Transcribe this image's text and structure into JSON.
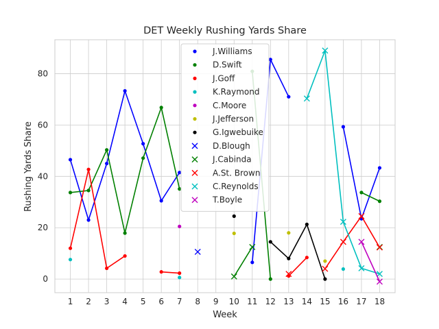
{
  "chart_data": {
    "type": "line",
    "title": "DET Weekly Rushing Yards Share",
    "xlabel": "Week",
    "ylabel": "Rushing Yards Share",
    "xlim": [
      0.15,
      18.85
    ],
    "ylim": [
      -5.3,
      93.2
    ],
    "xticks": [
      1,
      2,
      3,
      4,
      5,
      6,
      7,
      8,
      9,
      10,
      11,
      12,
      13,
      14,
      15,
      16,
      17,
      18
    ],
    "yticks": [
      0,
      20,
      40,
      60,
      80
    ],
    "grid": true,
    "legend_position": "top-center",
    "series": [
      {
        "name": "J.Williams",
        "color": "#0000ff",
        "marker": "dot",
        "segments": [
          [
            [
              1,
              46.5
            ],
            [
              2,
              23
            ],
            [
              3,
              45
            ],
            [
              4,
              73.3
            ],
            [
              5,
              52.7
            ],
            [
              6,
              30.5
            ],
            [
              7,
              41.5
            ]
          ],
          [
            [
              11,
              6.5
            ],
            [
              12,
              85.5
            ],
            [
              13,
              71
            ]
          ],
          [
            [
              16,
              59.3
            ],
            [
              17,
              23.5
            ],
            [
              18,
              43.3
            ]
          ]
        ]
      },
      {
        "name": "D.Swift",
        "color": "#008000",
        "marker": "dot",
        "segments": [
          [
            [
              1,
              33.7
            ],
            [
              2,
              34.5
            ],
            [
              3,
              50.3
            ],
            [
              4,
              17.9
            ],
            [
              5,
              47.1
            ],
            [
              6,
              66.8
            ],
            [
              7,
              35.1
            ]
          ],
          [
            [
              11,
              80.9
            ],
            [
              12,
              0
            ]
          ],
          [
            [
              17,
              33.7
            ],
            [
              18,
              30.3
            ]
          ]
        ]
      },
      {
        "name": "J.Goff",
        "color": "#ff0000",
        "marker": "dot",
        "segments": [
          [
            [
              1,
              12
            ],
            [
              2,
              42.7
            ],
            [
              3,
              4.2
            ],
            [
              4,
              9
            ]
          ],
          [
            [
              6,
              2.8
            ],
            [
              7,
              2.3
            ]
          ],
          [
            [
              13,
              1.2
            ],
            [
              14,
              8.4
            ]
          ]
        ]
      },
      {
        "name": "K.Raymond",
        "color": "#00bfbf",
        "marker": "dot",
        "segments": [
          [
            [
              1,
              7.6
            ]
          ],
          [
            [
              7,
              0.6
            ]
          ],
          [
            [
              16,
              3.9
            ]
          ]
        ]
      },
      {
        "name": "C.Moore",
        "color": "#bf00bf",
        "marker": "dot",
        "segments": [
          [
            [
              7,
              20.5
            ]
          ]
        ]
      },
      {
        "name": "J.Jefferson",
        "color": "#bfbf00",
        "marker": "dot",
        "segments": [
          [
            [
              10,
              17.8
            ]
          ],
          [
            [
              13,
              18
            ]
          ],
          [
            [
              15,
              7
            ]
          ]
        ]
      },
      {
        "name": "G.Igwebuike",
        "color": "#000000",
        "marker": "dot",
        "segments": [
          [
            [
              10,
              24.5
            ]
          ],
          [
            [
              12,
              14.5
            ],
            [
              13,
              8
            ],
            [
              14,
              21.3
            ],
            [
              15,
              0
            ]
          ]
        ]
      },
      {
        "name": "D.Blough",
        "color": "#0000ff",
        "marker": "x",
        "segments": [
          [
            [
              8,
              10.6
            ]
          ]
        ]
      },
      {
        "name": "J.Cabinda",
        "color": "#008000",
        "marker": "x",
        "segments": [
          [
            [
              10,
              1
            ],
            [
              11,
              12.5
            ]
          ],
          [
            [
              18,
              12.5
            ]
          ]
        ]
      },
      {
        "name": "A.St. Brown",
        "color": "#ff0000",
        "marker": "x",
        "segments": [
          [
            [
              13,
              2
            ]
          ],
          [
            [
              15,
              4
            ],
            [
              16,
              14.5
            ],
            [
              17,
              24.5
            ],
            [
              18,
              12.3
            ]
          ]
        ]
      },
      {
        "name": "C.Reynolds",
        "color": "#00bfbf",
        "marker": "x",
        "segments": [
          [
            [
              14,
              70.3
            ],
            [
              15,
              89
            ],
            [
              16,
              22.3
            ],
            [
              17,
              4.2
            ],
            [
              18,
              2
            ]
          ]
        ]
      },
      {
        "name": "T.Boyle",
        "color": "#bf00bf",
        "marker": "x",
        "segments": [
          [
            [
              17,
              14.5
            ],
            [
              18,
              -1
            ]
          ]
        ]
      }
    ]
  }
}
